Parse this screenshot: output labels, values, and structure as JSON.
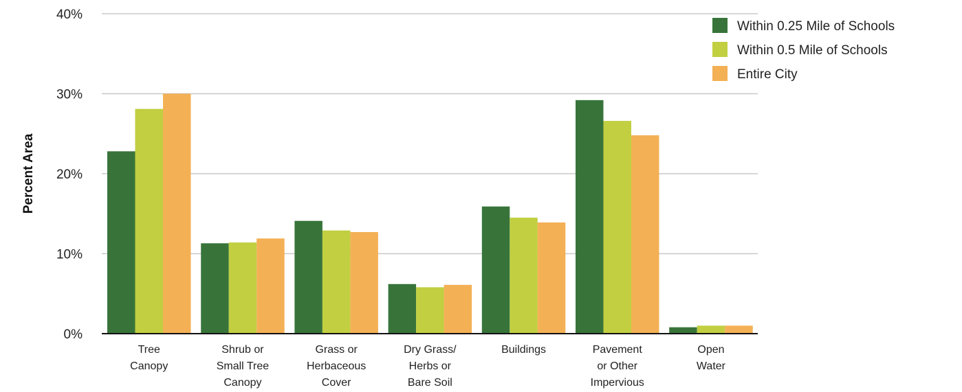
{
  "chart_data": {
    "type": "bar",
    "title": "",
    "xlabel": "",
    "ylabel": "Percent Area",
    "ylim": [
      0,
      40
    ],
    "yticks": [
      "0%",
      "10%",
      "20%",
      "30%",
      "40%"
    ],
    "grid": true,
    "legend_position": "top-right",
    "categories": [
      [
        "Tree",
        "Canopy"
      ],
      [
        "Shrub or",
        "Small Tree",
        "Canopy"
      ],
      [
        "Grass or",
        "Herbaceous",
        "Cover"
      ],
      [
        "Dry Grass/",
        "Herbs or",
        "Bare Soil"
      ],
      [
        "Buildings"
      ],
      [
        "Pavement",
        "or Other",
        "Impervious"
      ],
      [
        "Open",
        "Water"
      ]
    ],
    "series": [
      {
        "name": "Within 0.25 Mile of Schools",
        "color": "#38743a",
        "values": [
          22.8,
          11.3,
          14.1,
          6.2,
          15.9,
          29.2,
          0.8
        ]
      },
      {
        "name": "Within 0.5 Mile of Schools",
        "color": "#c1cf41",
        "values": [
          28.1,
          11.4,
          12.9,
          5.8,
          14.5,
          26.6,
          1.0
        ]
      },
      {
        "name": "Entire City",
        "color": "#f4b055",
        "values": [
          30.0,
          11.9,
          12.7,
          6.1,
          13.9,
          24.8,
          1.0
        ]
      }
    ]
  }
}
